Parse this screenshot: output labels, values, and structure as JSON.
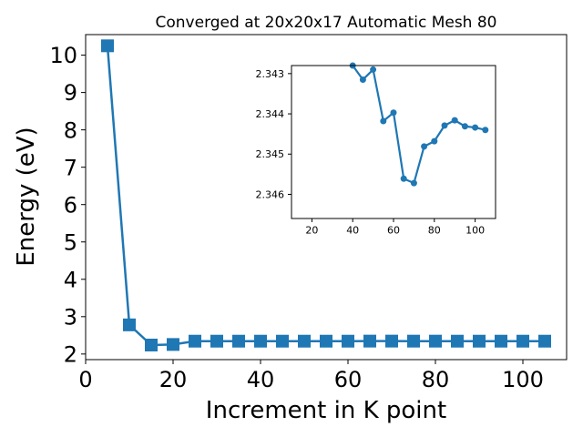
{
  "chart_data": [
    {
      "type": "line",
      "title": "Converged at 20x20x17 Automatic Mesh 80",
      "xlabel": "Increment in K point",
      "ylabel": "Energy (eV)",
      "xlim": [
        0,
        110
      ],
      "ylim": [
        1.85,
        10.55
      ],
      "xticks": [
        0,
        20,
        40,
        60,
        80,
        100
      ],
      "yticks": [
        2,
        3,
        4,
        5,
        6,
        7,
        8,
        9,
        10
      ],
      "marker": "square",
      "grid": false,
      "color": "#1f77b4",
      "series": [
        {
          "x": [
            5,
            10,
            15,
            20,
            25,
            30,
            35,
            40,
            45,
            50,
            55,
            60,
            65,
            70,
            75,
            80,
            85,
            90,
            95,
            100,
            105
          ],
          "y": [
            10.25,
            2.78,
            2.24,
            2.255,
            2.344,
            2.344,
            2.344,
            2.344,
            2.344,
            2.344,
            2.344,
            2.344,
            2.346,
            2.346,
            2.345,
            2.345,
            2.344,
            2.344,
            2.344,
            2.344,
            2.344
          ]
        }
      ]
    },
    {
      "type": "line",
      "title": "",
      "xlabel": "",
      "ylabel": "",
      "y_inverted": true,
      "xlim": [
        10,
        110
      ],
      "ylim": [
        2.3428,
        2.3466
      ],
      "xticks": [
        20,
        40,
        60,
        80,
        100
      ],
      "yticks": [
        2.343,
        2.344,
        2.345,
        2.346
      ],
      "ytick_labels": [
        "2.343",
        "2.344",
        "2.345",
        "2.346"
      ],
      "marker": "circle",
      "grid": false,
      "color": "#1f77b4",
      "series": [
        {
          "x": [
            40,
            45,
            50,
            55,
            60,
            65,
            70,
            75,
            80,
            85,
            90,
            95,
            100,
            105
          ],
          "y": [
            2.3428,
            2.34315,
            2.3429,
            2.34418,
            2.34397,
            2.34561,
            2.34572,
            2.34481,
            2.34468,
            2.34429,
            2.34416,
            2.34431,
            2.34434,
            2.3444
          ]
        }
      ]
    }
  ]
}
